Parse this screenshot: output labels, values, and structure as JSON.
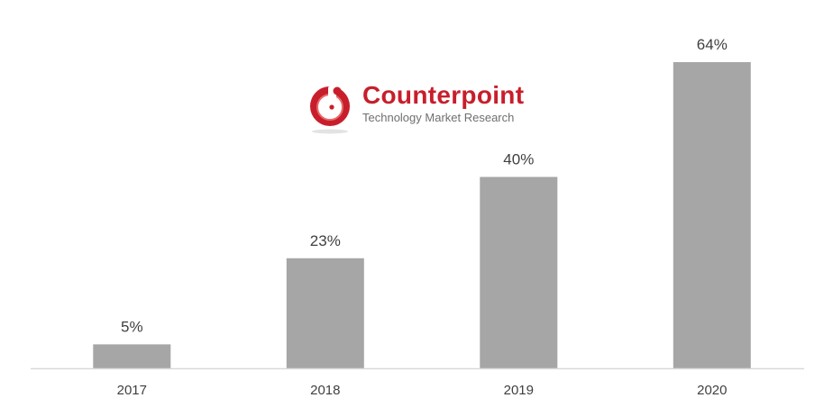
{
  "chart_data": {
    "type": "bar",
    "categories": [
      "2017",
      "2018",
      "2019",
      "2020"
    ],
    "values": [
      5,
      23,
      40,
      64
    ],
    "data_labels": [
      "5%",
      "23%",
      "40%",
      "64%"
    ],
    "title": "",
    "xlabel": "",
    "ylabel": "",
    "ylim": [
      0,
      64
    ],
    "grid": false,
    "legend": "none",
    "bar_color": "#a6a6a6",
    "axis_color": "#d9d9d9"
  },
  "watermark": {
    "brand": "Counterpoint",
    "tagline": "Technology Market Research",
    "brand_color": "#c81e2b"
  }
}
